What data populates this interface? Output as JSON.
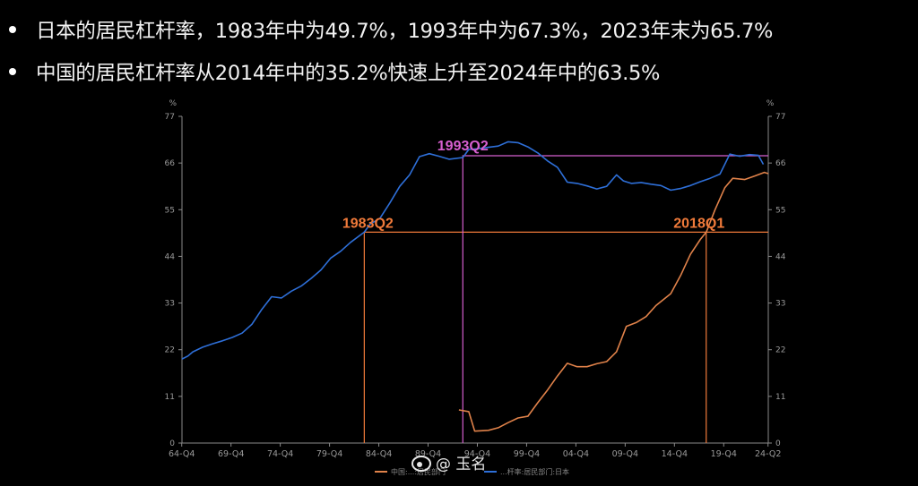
{
  "bullets": [
    "日本的居民杠杆率，1983年中为49.7%，1993年中为67.3%，2023年末为65.7%",
    "中国的居民杠杆率从2014年中的35.2%快速上升至2024年中的63.5%"
  ],
  "chart_data": {
    "type": "line",
    "ylabel_left": "%",
    "ylabel_right": "%",
    "ylim": [
      0,
      77
    ],
    "yticks": [
      "77",
      "66",
      "55",
      "44",
      "33",
      "22",
      "11",
      "0"
    ],
    "xticks": [
      "64-Q4",
      "69-Q4",
      "74-Q4",
      "79-Q4",
      "84-Q4",
      "89-Q4",
      "94-Q4",
      "99-Q4",
      "04-Q4",
      "09-Q4",
      "14-Q4",
      "19-Q4",
      "24-Q2"
    ],
    "legend": [
      {
        "name": "中国:...:居民部门",
        "color": "#e0824a"
      },
      {
        "name": "...杆率:居民部门:日本",
        "color": "#2e6fd8"
      }
    ],
    "annotations": [
      {
        "text": "1983Q2",
        "color": "#f07a3a",
        "x": 1983.4,
        "y": 49.7
      },
      {
        "text": "1993Q2",
        "color": "#d65fcf",
        "x": 1993.4,
        "y": 67.3
      },
      {
        "text": "2018Q1",
        "color": "#f07a3a",
        "x": 2018.1,
        "y": 49.7
      }
    ],
    "series": [
      {
        "name": "日本",
        "color": "#2e6fd8",
        "points": [
          [
            1964.9,
            19.8
          ],
          [
            1965.5,
            20.5
          ],
          [
            1966.0,
            21.5
          ],
          [
            1967.0,
            22.6
          ],
          [
            1968.0,
            23.4
          ],
          [
            1969.0,
            24.1
          ],
          [
            1970.0,
            24.9
          ],
          [
            1971.0,
            25.9
          ],
          [
            1972.0,
            28.0
          ],
          [
            1973.0,
            31.5
          ],
          [
            1974.0,
            34.5
          ],
          [
            1975.0,
            34.2
          ],
          [
            1976.0,
            35.8
          ],
          [
            1977.0,
            37.0
          ],
          [
            1978.0,
            38.8
          ],
          [
            1979.0,
            40.8
          ],
          [
            1980.0,
            43.6
          ],
          [
            1981.0,
            45.2
          ],
          [
            1982.0,
            47.3
          ],
          [
            1983.4,
            49.7
          ],
          [
            1984.0,
            51.6
          ],
          [
            1985.0,
            53.0
          ],
          [
            1986.0,
            56.6
          ],
          [
            1987.0,
            60.5
          ],
          [
            1988.0,
            63.2
          ],
          [
            1989.0,
            67.5
          ],
          [
            1990.0,
            68.2
          ],
          [
            1991.0,
            67.6
          ],
          [
            1992.0,
            66.9
          ],
          [
            1993.4,
            67.3
          ],
          [
            1994.0,
            69.2
          ],
          [
            1995.0,
            69.4
          ],
          [
            1996.0,
            69.7
          ],
          [
            1997.0,
            70.0
          ],
          [
            1998.0,
            71.0
          ],
          [
            1999.0,
            70.8
          ],
          [
            2000.0,
            69.8
          ],
          [
            2001.0,
            68.4
          ],
          [
            2002.0,
            66.5
          ],
          [
            2003.0,
            65.0
          ],
          [
            2004.0,
            61.5
          ],
          [
            2005.0,
            61.2
          ],
          [
            2006.0,
            60.6
          ],
          [
            2007.0,
            59.9
          ],
          [
            2008.0,
            60.5
          ],
          [
            2009.0,
            63.2
          ],
          [
            2009.7,
            61.8
          ],
          [
            2010.5,
            61.2
          ],
          [
            2011.5,
            61.4
          ],
          [
            2012.5,
            61.0
          ],
          [
            2013.5,
            60.7
          ],
          [
            2014.5,
            59.6
          ],
          [
            2015.5,
            60.0
          ],
          [
            2016.5,
            60.7
          ],
          [
            2017.5,
            61.6
          ],
          [
            2018.5,
            62.4
          ],
          [
            2019.5,
            63.4
          ],
          [
            2020.5,
            68.1
          ],
          [
            2021.5,
            67.6
          ],
          [
            2022.5,
            68.0
          ],
          [
            2023.4,
            67.8
          ],
          [
            2023.9,
            65.7
          ]
        ]
      },
      {
        "name": "中国",
        "color": "#e0824a",
        "points": [
          [
            1993.0,
            7.8
          ],
          [
            1994.0,
            7.4
          ],
          [
            1994.6,
            2.8
          ],
          [
            1996.0,
            3.0
          ],
          [
            1997.0,
            3.6
          ],
          [
            1998.0,
            4.8
          ],
          [
            1999.0,
            5.9
          ],
          [
            2000.0,
            6.3
          ],
          [
            2001.0,
            9.5
          ],
          [
            2002.0,
            12.5
          ],
          [
            2003.0,
            15.8
          ],
          [
            2004.0,
            18.8
          ],
          [
            2005.0,
            18.0
          ],
          [
            2006.0,
            18.0
          ],
          [
            2007.0,
            18.7
          ],
          [
            2008.0,
            19.2
          ],
          [
            2009.0,
            21.5
          ],
          [
            2010.0,
            27.5
          ],
          [
            2011.0,
            28.4
          ],
          [
            2012.0,
            29.8
          ],
          [
            2013.0,
            32.4
          ],
          [
            2014.5,
            35.2
          ],
          [
            2015.5,
            39.5
          ],
          [
            2016.5,
            44.5
          ],
          [
            2017.5,
            48.0
          ],
          [
            2018.1,
            49.7
          ],
          [
            2019.0,
            55.0
          ],
          [
            2020.0,
            60.2
          ],
          [
            2020.8,
            62.4
          ],
          [
            2022.0,
            62.1
          ],
          [
            2023.0,
            62.9
          ],
          [
            2024.0,
            63.8
          ],
          [
            2024.4,
            63.5
          ]
        ]
      }
    ]
  },
  "watermark": "@ 玉名"
}
